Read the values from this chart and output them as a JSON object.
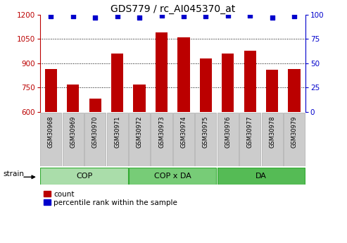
{
  "title": "GDS779 / rc_AI045370_at",
  "categories": [
    "GSM30968",
    "GSM30969",
    "GSM30970",
    "GSM30971",
    "GSM30972",
    "GSM30973",
    "GSM30974",
    "GSM30975",
    "GSM30976",
    "GSM30977",
    "GSM30978",
    "GSM30979"
  ],
  "bar_values": [
    862,
    770,
    680,
    960,
    770,
    1090,
    1060,
    930,
    960,
    975,
    858,
    865
  ],
  "percentile_values": [
    98,
    98,
    97,
    98,
    97,
    99,
    98,
    98,
    99,
    99,
    97,
    98
  ],
  "bar_color": "#BB0000",
  "dot_color": "#0000CC",
  "ylim_left": [
    600,
    1200
  ],
  "ylim_right": [
    0,
    100
  ],
  "yticks_left": [
    600,
    750,
    900,
    1050,
    1200
  ],
  "yticks_right": [
    0,
    25,
    50,
    75,
    100
  ],
  "grid_values": [
    750,
    900,
    1050
  ],
  "groups": [
    {
      "label": "COP",
      "start": 0,
      "end": 3
    },
    {
      "label": "COP x DA",
      "start": 4,
      "end": 7
    },
    {
      "label": "DA",
      "start": 8,
      "end": 11
    }
  ],
  "group_colors": [
    "#AADDAA",
    "#77CC77",
    "#55BB55"
  ],
  "group_edge_color": "#33AA33",
  "strain_label": "strain",
  "legend_count_label": "count",
  "legend_pct_label": "percentile rank within the sample",
  "background_color": "#ffffff",
  "xticklabel_bg": "#CCCCCC",
  "xticklabel_edge": "#AAAAAA",
  "bar_width": 0.55,
  "title_fontsize": 10,
  "tick_fontsize": 7.5,
  "label_fontsize": 7.5
}
